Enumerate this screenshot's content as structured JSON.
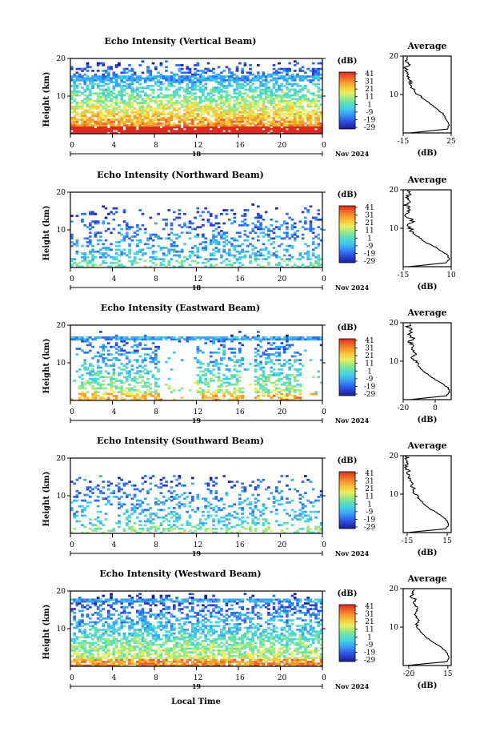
{
  "figure": {
    "xlabel": "Local Time",
    "date_label": "Nov 2024",
    "day_labels": [
      "18",
      "18",
      "19",
      "19",
      "19"
    ],
    "colorbar_unit": "(dB)",
    "colorbar_ticks": [
      "41",
      "31",
      "21",
      "11",
      "1",
      "-9",
      "-19",
      "-29"
    ],
    "average_title": "Average",
    "average_xlabel": "(dB)"
  },
  "colors": {
    "colormap": [
      "#1b1f8c",
      "#2a3ed0",
      "#2f6df0",
      "#3aa4f5",
      "#43d0e6",
      "#5fe0b8",
      "#a0e880",
      "#e8ef60",
      "#f8c83c",
      "#f59a2c",
      "#ee6228",
      "#dd2a22"
    ]
  },
  "chart_data": [
    {
      "type": "heatmap",
      "title": "Echo Intensity (Vertical Beam)",
      "ylabel": "Height (km)",
      "xlim": [
        0,
        24
      ],
      "ylim": [
        0,
        20
      ],
      "xticks": [
        "0",
        "4",
        "8",
        "12",
        "16",
        "20",
        "0"
      ],
      "yticks": [
        "10",
        "20"
      ],
      "colorbar_range_db": [
        -29,
        41
      ],
      "profile": {
        "title": "Average",
        "xlabel": "(dB)",
        "xlim": [
          -15,
          25
        ],
        "xticks": [
          "-15",
          "25"
        ],
        "yticks": [
          "10",
          "20"
        ],
        "height_km": [
          0,
          1,
          2,
          3,
          4,
          5,
          6,
          7,
          8,
          9,
          10,
          11,
          12,
          13,
          14,
          15,
          16,
          17,
          18,
          19,
          20
        ],
        "avg_db": [
          -10,
          22,
          23,
          22,
          20,
          18,
          14,
          10,
          6,
          1,
          -3,
          -6,
          -8,
          -9,
          -10,
          -11,
          -12,
          -13,
          -10,
          -13,
          -10
        ]
      }
    },
    {
      "type": "heatmap",
      "title": "Echo Intensity (Northward Beam)",
      "ylabel": "Height (km)",
      "xlim": [
        0,
        24
      ],
      "ylim": [
        0,
        20
      ],
      "xticks": [
        "0",
        "4",
        "8",
        "12",
        "16",
        "20",
        "0"
      ],
      "yticks": [
        "10",
        "20"
      ],
      "colorbar_range_db": [
        -29,
        41
      ],
      "profile": {
        "title": "Average",
        "xlabel": "(dB)",
        "xlim": [
          -15,
          10
        ],
        "xticks": [
          "-15",
          "10"
        ],
        "yticks": [
          "10",
          "20"
        ],
        "height_km": [
          0,
          1,
          2,
          3,
          4,
          5,
          6,
          7,
          8,
          9,
          10,
          11,
          12,
          13,
          14,
          15,
          16,
          17,
          18,
          19,
          20
        ],
        "avg_db": [
          -12,
          7,
          9,
          8,
          5,
          2,
          -2,
          -5,
          -8,
          -10,
          -11,
          -12,
          -10,
          -13,
          -12,
          -11,
          -14,
          -12,
          -13,
          -12,
          -13
        ]
      }
    },
    {
      "type": "heatmap",
      "title": "Echo Intensity (Eastward Beam)",
      "ylabel": "Height (km)",
      "xlim": [
        0,
        24
      ],
      "ylim": [
        0,
        20
      ],
      "xticks": [
        "0",
        "4",
        "8",
        "12",
        "16",
        "20",
        "0"
      ],
      "yticks": [
        "10",
        "20"
      ],
      "colorbar_range_db": [
        -29,
        41
      ],
      "profile": {
        "title": "Average",
        "xlabel": "(dB)",
        "xlim": [
          -20,
          10
        ],
        "xticks": [
          "-20",
          "0"
        ],
        "yticks": [
          "10",
          "20"
        ],
        "height_km": [
          0,
          1,
          2,
          3,
          4,
          5,
          6,
          7,
          8,
          9,
          10,
          11,
          12,
          13,
          14,
          15,
          16,
          17,
          18,
          19,
          20
        ],
        "avg_db": [
          -16,
          7,
          9,
          8,
          5,
          1,
          -3,
          -6,
          -9,
          -11,
          -12,
          -14,
          -13,
          -15,
          -14,
          -16,
          -14,
          -16,
          -15,
          -17,
          -16
        ]
      }
    },
    {
      "type": "heatmap",
      "title": "Echo Intensity (Southward Beam)",
      "ylabel": "Height (km)",
      "xlim": [
        0,
        24
      ],
      "ylim": [
        0,
        20
      ],
      "xticks": [
        "0",
        "4",
        "8",
        "12",
        "16",
        "20",
        "0"
      ],
      "yticks": [
        "10",
        "20"
      ],
      "colorbar_range_db": [
        -29,
        41
      ],
      "profile": {
        "title": "Average",
        "xlabel": "(dB)",
        "xlim": [
          -18,
          18
        ],
        "xticks": [
          "-15",
          "15"
        ],
        "yticks": [
          "10",
          "20"
        ],
        "height_km": [
          0,
          1,
          2,
          3,
          4,
          5,
          6,
          7,
          8,
          9,
          10,
          11,
          12,
          13,
          14,
          15,
          16,
          17,
          18,
          19,
          20
        ],
        "avg_db": [
          -15,
          14,
          16,
          15,
          12,
          8,
          3,
          -1,
          -4,
          -7,
          -9,
          -10,
          -11,
          -12,
          -13,
          -14,
          -14,
          -16,
          -15,
          -16,
          -15
        ]
      }
    },
    {
      "type": "heatmap",
      "title": "Echo Intensity (Westward Beam)",
      "ylabel": "Height (km)",
      "xlim": [
        0,
        24
      ],
      "ylim": [
        0,
        20
      ],
      "xticks": [
        "0",
        "4",
        "8",
        "12",
        "16",
        "20",
        "0"
      ],
      "yticks": [
        "10",
        "20"
      ],
      "colorbar_range_db": [
        -29,
        41
      ],
      "profile": {
        "title": "Average",
        "xlabel": "(dB)",
        "xlim": [
          -25,
          18
        ],
        "xticks": [
          "-20",
          "15"
        ],
        "yticks": [
          "10",
          "20"
        ],
        "height_km": [
          0,
          1,
          2,
          3,
          4,
          5,
          6,
          7,
          8,
          9,
          10,
          11,
          12,
          13,
          14,
          15,
          16,
          17,
          18,
          19,
          20
        ],
        "avg_db": [
          -22,
          14,
          16,
          15,
          12,
          8,
          2,
          -3,
          -7,
          -10,
          -12,
          -13,
          -11,
          -14,
          -13,
          -12,
          -16,
          -13,
          -18,
          -15,
          -17
        ]
      }
    }
  ]
}
